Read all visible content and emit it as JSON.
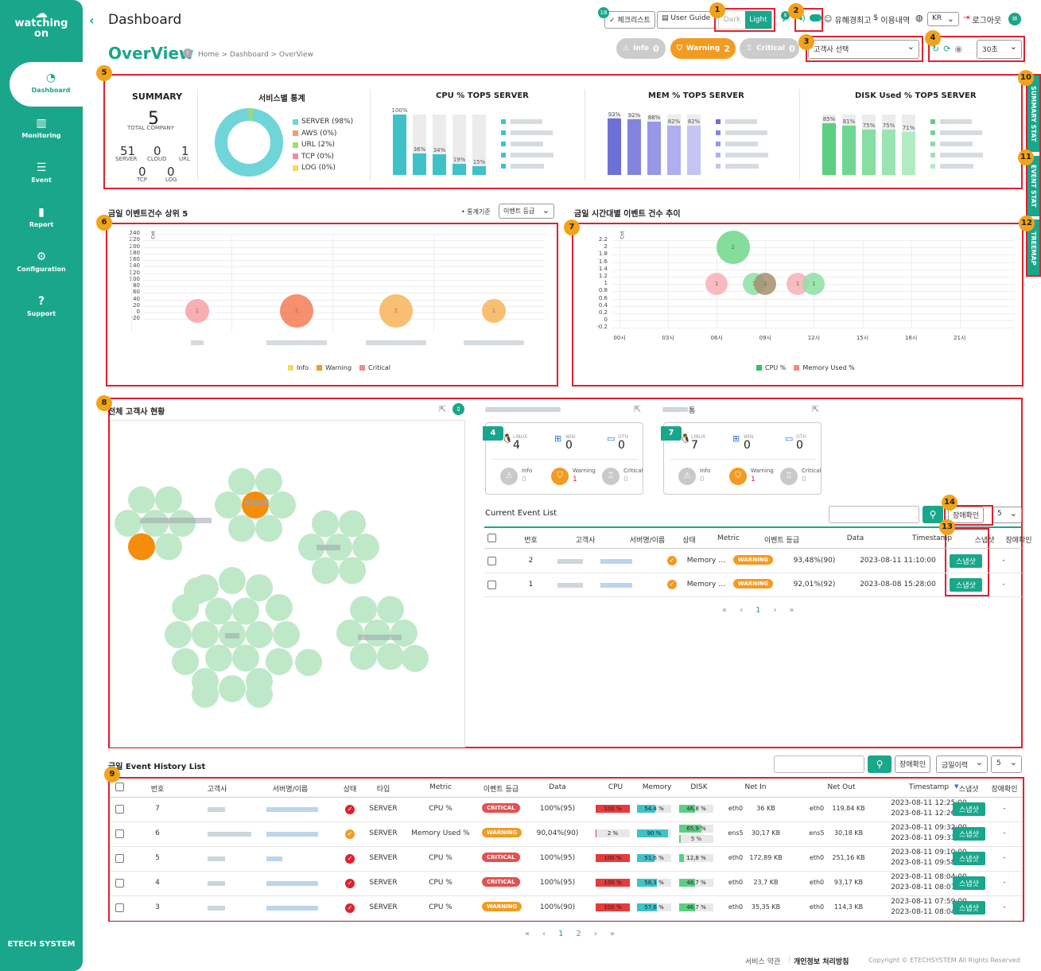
{
  "sidebar": {
    "logo_line1": "watching",
    "logo_line2": "on",
    "items": [
      {
        "label": "Dashboard",
        "icon": "dashboard-gauge-icon"
      },
      {
        "label": "Monitoring",
        "icon": "bar-chart-icon"
      },
      {
        "label": "Event",
        "icon": "list-icon"
      },
      {
        "label": "Report",
        "icon": "clipboard-icon"
      },
      {
        "label": "Configuration",
        "icon": "gear-icon"
      },
      {
        "label": "Support",
        "icon": "question-icon"
      }
    ],
    "footer": "ETECH SYSTEM"
  },
  "header": {
    "title": "Dashboard",
    "checklist": "체크리스트",
    "checklist_count": "18",
    "user_guide": "User Guide",
    "theme_dark": "Dark",
    "theme_light": "Light",
    "bell_count": "8",
    "user_name": "유혜경최고",
    "usage": "이용내역",
    "lang": "KR",
    "logout": "로그아웃"
  },
  "page": {
    "title": "OverView",
    "breadcrumb": "Home > Dashboard > OverView"
  },
  "status_pills": [
    {
      "label": "Info",
      "count": "0",
      "color": "#c9c9c9"
    },
    {
      "label": "Warning",
      "count": "2",
      "color": "#f29b22"
    },
    {
      "label": "Critical",
      "count": "0",
      "color": "#c9c9c9"
    }
  ],
  "controls": {
    "customer_select": "고객사 선택",
    "interval": "30초"
  },
  "badges": [
    "1",
    "2",
    "3",
    "4",
    "5",
    "6",
    "7",
    "8",
    "9",
    "10",
    "11",
    "12",
    "13",
    "14"
  ],
  "side_tabs": [
    "SUMMARY STAT",
    "EVENT STAT",
    "TREEMAP"
  ],
  "summary": {
    "title": "SUMMARY",
    "total": "5",
    "total_label": "TOTAL COMPANY",
    "server": "51",
    "server_label": "SERVER",
    "cloud": "0",
    "cloud_label": "CLOUD",
    "url": "1",
    "url_label": "URL",
    "tcp": "0",
    "tcp_label": "TCP",
    "log": "0",
    "log_label": "LOG"
  },
  "service_stats": {
    "title": "서비스별 통계",
    "legend": [
      {
        "label": "SERVER (98%)",
        "color": "#70d5d8"
      },
      {
        "label": "AWS (0%)",
        "color": "#f79a6b"
      },
      {
        "label": "URL (2%)",
        "color": "#a6d96a"
      },
      {
        "label": "TCP (0%)",
        "color": "#f28aa0"
      },
      {
        "label": "LOG (0%)",
        "color": "#f7d95b"
      }
    ],
    "chart_data": {
      "type": "pie",
      "values": [
        98,
        0,
        2,
        0,
        0
      ]
    }
  },
  "cpu_top5": {
    "title": "CPU % TOP5 SERVER",
    "chart_data": {
      "type": "bar",
      "values": [
        100,
        36,
        34,
        19,
        15
      ],
      "labels": [
        "100%",
        "36%",
        "34%",
        "19%",
        "15%"
      ]
    },
    "color": "#3ec2c8"
  },
  "mem_top5": {
    "title": "MEM % TOP5 SERVER",
    "chart_data": {
      "type": "bar",
      "values": [
        93,
        92,
        88,
        82,
        82
      ],
      "labels": [
        "93%",
        "92%",
        "88%",
        "82%",
        "82%"
      ]
    },
    "colors": [
      "#6f6fd8",
      "#8383e0",
      "#9797e8",
      "#aeaef0",
      "#c4c4f4"
    ]
  },
  "disk_top5": {
    "title": "DISK Used % TOP5 SERVER",
    "chart_data": {
      "type": "bar",
      "values": [
        85,
        81,
        75,
        75,
        71
      ],
      "labels": [
        "85%",
        "81%",
        "75%",
        "75%",
        "71%"
      ]
    },
    "colors": [
      "#5ccf82",
      "#6fd692",
      "#85dea2",
      "#99e4b2",
      "#b0ebc2"
    ]
  },
  "top5_events": {
    "title": "금일 이벤트건수 상위 5",
    "criteria_label": "• 통계기준",
    "criteria_value": "이벤트 등급",
    "ylabel": "Cnt",
    "yticks": [
      "240",
      "220",
      "200",
      "180",
      "160",
      "140",
      "120",
      "100",
      "80",
      "60",
      "40",
      "20",
      "0",
      "-20"
    ],
    "legend": [
      {
        "label": "Info",
        "color": "#f7d95b"
      },
      {
        "label": "Warning",
        "color": "#f29b22"
      },
      {
        "label": "Critical",
        "color": "#f28a8a"
      }
    ],
    "chart_data": {
      "type": "scatter",
      "points": [
        {
          "value": 1,
          "size": 1,
          "color": "#f7a0a8"
        },
        {
          "value": 2,
          "size": 2,
          "color": "#f57c55"
        },
        {
          "value": 2,
          "size": 2,
          "color": "#f7b55a"
        },
        {
          "value": 1,
          "size": 1,
          "color": "#f7b55a"
        }
      ]
    }
  },
  "hourly_events": {
    "title": "금일 시간대별 이벤트 건수 추이",
    "ylabel": "Cnt",
    "yticks": [
      "2.2",
      "2",
      "1.8",
      "1.6",
      "1.4",
      "1.2",
      "1",
      "0.8",
      "0.6",
      "0.4",
      "0.2",
      "0",
      "-0.2"
    ],
    "xticks": [
      "00시",
      "03시",
      "06시",
      "09시",
      "12시",
      "15시",
      "18시",
      "21시"
    ],
    "legend": [
      {
        "label": "CPU %",
        "color": "#2ec45b"
      },
      {
        "label": "Memory Used %",
        "color": "#f28a8a"
      }
    ],
    "chart_data": {
      "type": "scatter",
      "points": [
        {
          "label": "2",
          "value": 2,
          "hour": 7,
          "color": "#6fd88a"
        },
        {
          "label": "1",
          "value": 1,
          "hour": 6,
          "color": "#f7b0b8"
        },
        {
          "label": "1",
          "value": 1,
          "hour": 8.3,
          "color": "#8ee0a4"
        },
        {
          "label": "1",
          "value": 1,
          "hour": 9,
          "color": "#a69070"
        },
        {
          "label": "1",
          "value": 1,
          "hour": 11,
          "color": "#f7b0b8"
        },
        {
          "label": "1",
          "value": 1,
          "hour": 12,
          "color": "#8ee0a4"
        }
      ]
    }
  },
  "customers": {
    "title": "전체 고객사 현황"
  },
  "server_cards": [
    {
      "count": "4",
      "linux_label": "LINUX",
      "linux": "4",
      "win_label": "WIN",
      "win": "0",
      "oth_label": "OTH",
      "oth": "0",
      "info": "0",
      "warning": "1",
      "critical": "0"
    },
    {
      "count": "7",
      "linux_label": "LINUX",
      "linux": "7",
      "win_label": "WIN",
      "win": "0",
      "oth_label": "OTH",
      "oth": "0",
      "info": "0",
      "warning": "1",
      "critical": "0"
    }
  ],
  "card_titles": [
    "",
    "통"
  ],
  "current_events": {
    "title": "Current Event List",
    "confirm_btn": "장애확인",
    "page_size": "5",
    "headers": [
      "번호",
      "고객사",
      "서버명/이름",
      "상태",
      "Metric",
      "이벤트 등급",
      "Data",
      "Timestamp",
      "스냅샷",
      "장애확인"
    ],
    "rows": [
      {
        "no": "2",
        "metric": "Memory …",
        "grade": "WARNING",
        "data": "93,48%(90)",
        "ts": "2023-08-11 11:10:00",
        "snap": "스냅샷",
        "confirm": "-"
      },
      {
        "no": "1",
        "metric": "Memory …",
        "grade": "WARNING",
        "data": "92,01%(92)",
        "ts": "2023-08-08 15:28:00",
        "snap": "스냅샷",
        "confirm": "-"
      }
    ],
    "page": "1"
  },
  "history": {
    "title": "금일 Event History List",
    "confirm_btn": "장애확인",
    "period": "금일이력",
    "page_size": "5",
    "headers": [
      "번호",
      "고객사",
      "서버명/이름",
      "상태",
      "타입",
      "Metric",
      "이벤트 등급",
      "Data",
      "CPU",
      "Memory",
      "DISK",
      "Net In",
      "Net Out",
      "Timestamp",
      "스냅샷",
      "장애확인"
    ],
    "rows": [
      {
        "no": "7",
        "status": "critical",
        "type": "SERVER",
        "metric": "CPU %",
        "grade": "CRITICAL",
        "data": "100%(95)",
        "cpu": "100 %",
        "cpu_pct": 100,
        "mem": "54,4 %",
        "mem_pct": 54.4,
        "disk": "46,8 %",
        "disk_pct": 46.8,
        "disk2": "",
        "netin_if": "eth0",
        "netin": "36 KB",
        "netout_if": "eth0",
        "netout": "119,84 KB",
        "ts1": "2023-08-11 12:25:00",
        "ts2": "2023-08-11 12:26:27",
        "snap": "스냅샷",
        "confirm": "-"
      },
      {
        "no": "6",
        "status": "warning",
        "type": "SERVER",
        "metric": "Memory Used %",
        "grade": "WARNING",
        "data": "90,04%(90)",
        "cpu": "2 %",
        "cpu_pct": 2,
        "mem": "90 %",
        "mem_pct": 90,
        "disk": "65,9 %",
        "disk_pct": 65.9,
        "disk2": "5 %",
        "netin_if": "ens5",
        "netin": "30,17 KB",
        "netout_if": "ens5",
        "netout": "30,18 KB",
        "ts1": "2023-08-11 09:32:00",
        "ts2": "2023-08-11 09:33:08",
        "snap": "스냅샷",
        "confirm": "-"
      },
      {
        "no": "5",
        "status": "critical",
        "type": "SERVER",
        "metric": "CPU %",
        "grade": "CRITICAL",
        "data": "100%(95)",
        "cpu": "100 %",
        "cpu_pct": 100,
        "mem": "51,6 %",
        "mem_pct": 51.6,
        "disk": "12,8 %",
        "disk_pct": 12.8,
        "disk2": "",
        "netin_if": "eth0",
        "netin": "172,89 KB",
        "netout_if": "eth0",
        "netout": "251,16 KB",
        "ts1": "2023-08-11 09:10:00",
        "ts2": "2023-08-11 09:58:18",
        "snap": "스냅샷",
        "confirm": "-"
      },
      {
        "no": "4",
        "status": "critical",
        "type": "SERVER",
        "metric": "CPU %",
        "grade": "CRITICAL",
        "data": "100%(95)",
        "cpu": "100 %",
        "cpu_pct": 100,
        "mem": "58,3 %",
        "mem_pct": 58.3,
        "disk": "46,7 %",
        "disk_pct": 46.7,
        "disk2": "",
        "netin_if": "eth0",
        "netin": "23,7 KB",
        "netout_if": "eth0",
        "netout": "93,17 KB",
        "ts1": "2023-08-11 08:04:00",
        "ts2": "2023-08-11 08:07:27",
        "snap": "스냅샷",
        "confirm": "-"
      },
      {
        "no": "3",
        "status": "critical",
        "type": "SERVER",
        "metric": "CPU %",
        "grade": "WARNING",
        "data": "100%(90)",
        "cpu": "100 %",
        "cpu_pct": 100,
        "mem": "57,6 %",
        "mem_pct": 57.6,
        "disk": "46,7 %",
        "disk_pct": 46.7,
        "disk2": "",
        "netin_if": "eth0",
        "netin": "35,35 KB",
        "netout_if": "eth0",
        "netout": "114,3 KB",
        "ts1": "2023-08-11 07:59:00",
        "ts2": "2023-08-11 08:04:27",
        "snap": "스냅샷",
        "confirm": "-"
      }
    ],
    "pages": [
      "1",
      "2"
    ]
  },
  "footer": {
    "terms": "서비스 약관",
    "privacy": "개인정보 처리방침",
    "copyright": "Copyright © ETECHSYSTEM All Rights Reserved"
  }
}
